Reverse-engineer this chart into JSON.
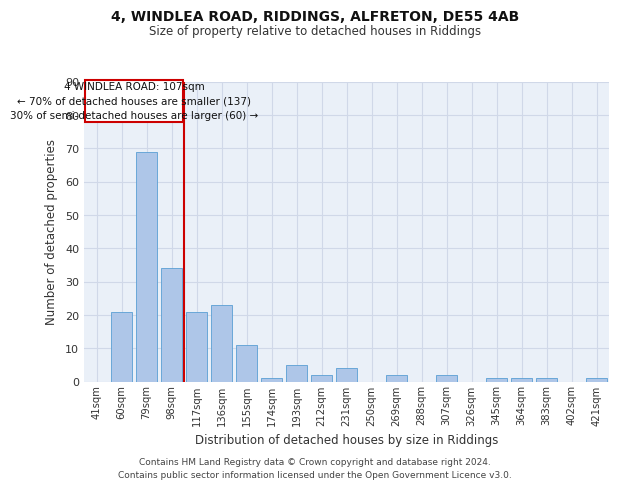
{
  "title1": "4, WINDLEA ROAD, RIDDINGS, ALFRETON, DE55 4AB",
  "title2": "Size of property relative to detached houses in Riddings",
  "xlabel": "Distribution of detached houses by size in Riddings",
  "ylabel": "Number of detached properties",
  "categories": [
    "41sqm",
    "60sqm",
    "79sqm",
    "98sqm",
    "117sqm",
    "136sqm",
    "155sqm",
    "174sqm",
    "193sqm",
    "212sqm",
    "231sqm",
    "250sqm",
    "269sqm",
    "288sqm",
    "307sqm",
    "326sqm",
    "345sqm",
    "364sqm",
    "383sqm",
    "402sqm",
    "421sqm"
  ],
  "values": [
    0,
    21,
    69,
    34,
    21,
    23,
    11,
    1,
    5,
    2,
    4,
    0,
    2,
    0,
    2,
    0,
    1,
    1,
    1,
    0,
    1
  ],
  "bar_color": "#aec6e8",
  "bar_edge_color": "#5a9fd4",
  "vline_pos": 3.5,
  "vline_color": "#cc0000",
  "annotation_line1": "4 WINDLEA ROAD: 107sqm",
  "annotation_line2": "← 70% of detached houses are smaller (137)",
  "annotation_line3": "30% of semi-detached houses are larger (60) →",
  "annotation_box_color": "#ffffff",
  "annotation_box_edge": "#cc0000",
  "ylim": [
    0,
    90
  ],
  "yticks": [
    0,
    10,
    20,
    30,
    40,
    50,
    60,
    70,
    80,
    90
  ],
  "grid_color": "#d0d8e8",
  "bg_color": "#eaf0f8",
  "footer_line1": "Contains HM Land Registry data © Crown copyright and database right 2024.",
  "footer_line2": "Contains public sector information licensed under the Open Government Licence v3.0."
}
